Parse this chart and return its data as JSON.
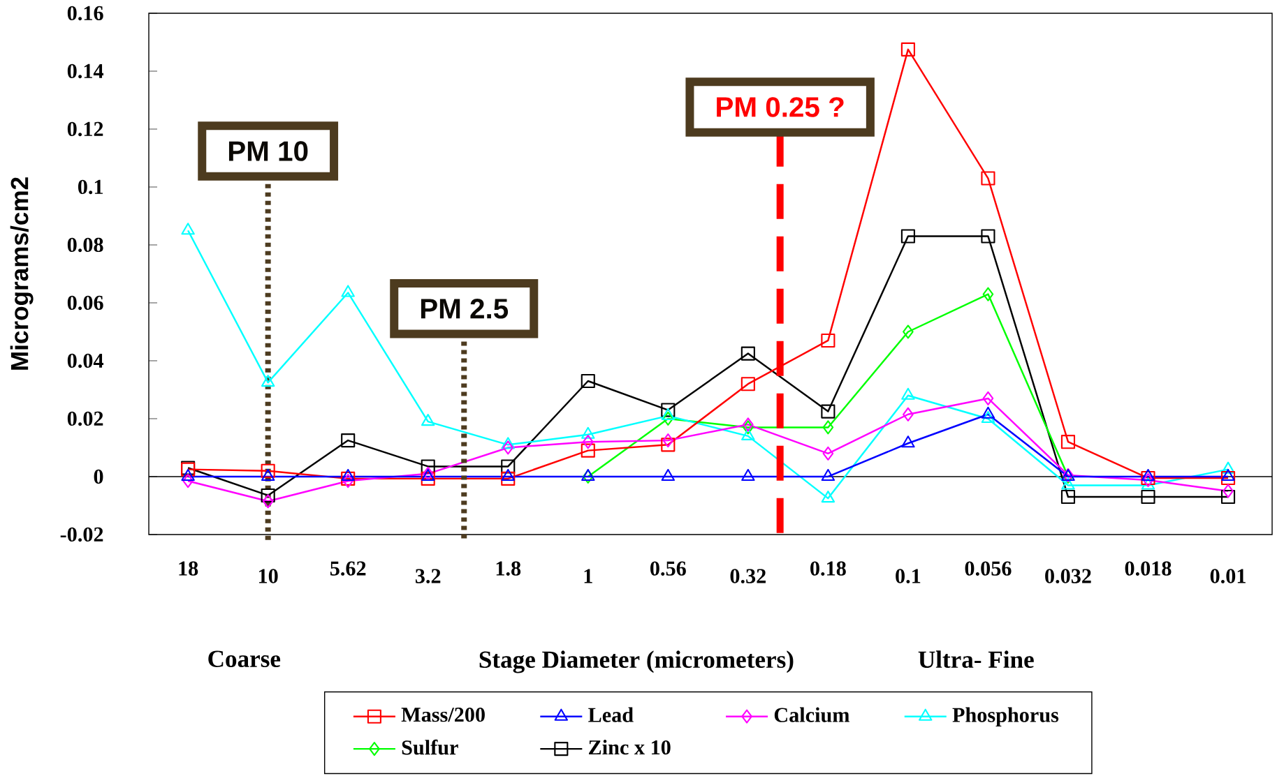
{
  "chart_data": {
    "type": "line",
    "ylabel": "Micrograms/cm2",
    "xlabel": "Stage  Diameter (micrometers)",
    "annotations": [
      "PM 2.5",
      "PM 0.25 ?",
      "Coarse",
      "Ultra- Fine"
    ],
    "categories": [
      "18",
      "10",
      "5.62",
      "3.2",
      "1.8",
      "1",
      "0.56",
      "0.32",
      "0.18",
      "0.1",
      "0.056",
      "0.032",
      "0.018",
      "0.01"
    ],
    "ylim": [
      -0.02,
      0.16
    ],
    "yticks": [
      -0.02,
      0,
      0.02,
      0.04,
      0.06,
      0.08,
      0.1,
      0.12,
      0.14,
      0.16
    ],
    "legend": "bottom",
    "series": [
      {
        "name": "Mass/200",
        "color": "#ff0000",
        "marker": "square",
        "values": [
          0.0025,
          0.002,
          -0.0007,
          -0.0007,
          -0.0007,
          0.009,
          0.011,
          0.032,
          0.047,
          0.1475,
          0.103,
          0.012,
          -0.0005,
          -0.0005
        ]
      },
      {
        "name": "Lead",
        "color": "#0000ff",
        "marker": "triangle",
        "values": [
          0,
          0,
          0,
          0,
          0,
          0,
          0,
          0,
          0,
          0.0115,
          0.0215,
          0,
          0,
          0
        ]
      },
      {
        "name": "Calcium",
        "color": "#ff00ff",
        "marker": "diamond",
        "values": [
          -0.0015,
          -0.0085,
          -0.0015,
          0.001,
          0.01,
          0.012,
          0.0125,
          0.018,
          0.008,
          0.0215,
          0.027,
          0.0005,
          -0.0012,
          -0.005
        ]
      },
      {
        "name": "Phosphorus",
        "color": "#00ffff",
        "marker": "triangle",
        "values": [
          0.085,
          0.0325,
          0.0635,
          0.019,
          0.011,
          0.0145,
          0.021,
          0.014,
          -0.0075,
          0.028,
          0.02,
          -0.003,
          -0.003,
          0.0025
        ]
      },
      {
        "name": "Sulfur",
        "color": "#00ff00",
        "marker": "diamond",
        "values": [
          null,
          null,
          null,
          null,
          null,
          0,
          0.02,
          0.017,
          0.017,
          0.05,
          0.063,
          0,
          null,
          null
        ]
      },
      {
        "name": "Zinc x 10",
        "color": "#000000",
        "marker": "square",
        "values": [
          0.003,
          -0.0065,
          0.0125,
          0.0035,
          0.0035,
          0.033,
          0.023,
          0.0425,
          0.0225,
          0.083,
          0.083,
          -0.007,
          -0.007,
          -0.007
        ]
      }
    ],
    "ref_lines": [
      {
        "axis": "y",
        "value": 0,
        "color": "#000000",
        "line_style": "solid"
      },
      {
        "axis": "x",
        "value": "10",
        "label": "PM 10",
        "color": "#4d3b1f",
        "line_style": "dotted"
      }
    ]
  }
}
